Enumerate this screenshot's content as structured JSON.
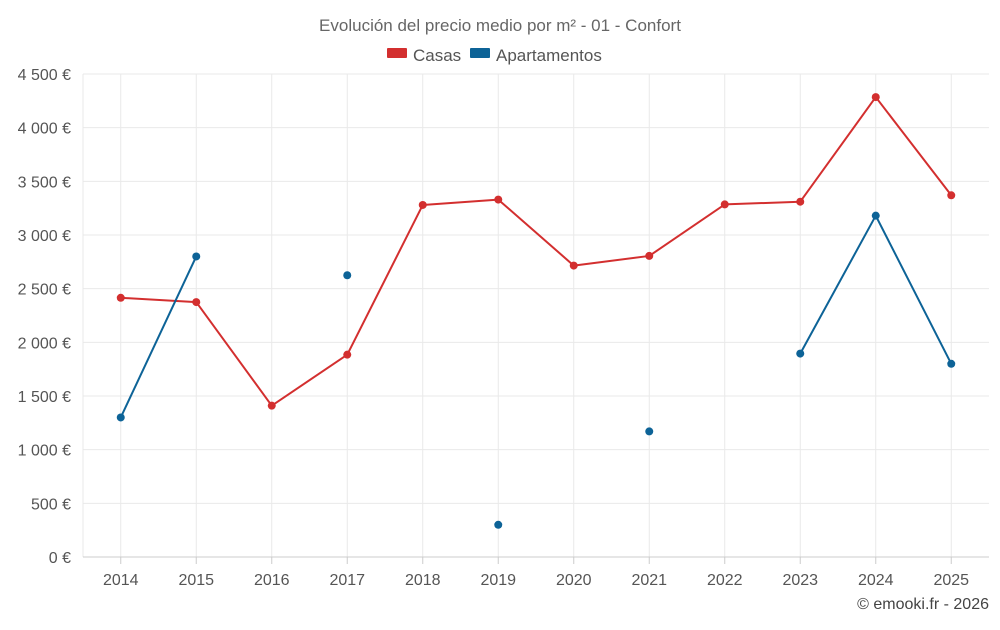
{
  "chart_data": {
    "type": "line",
    "title": "Evolución del precio medio por m² - 01 - Confort",
    "xlabel": "",
    "ylabel": "",
    "categories": [
      "2014",
      "2015",
      "2016",
      "2017",
      "2018",
      "2019",
      "2020",
      "2021",
      "2022",
      "2023",
      "2024",
      "2025"
    ],
    "ylim": [
      0,
      4500
    ],
    "y_ticks": [
      0,
      500,
      1000,
      1500,
      2000,
      2500,
      3000,
      3500,
      4000,
      4500
    ],
    "y_tick_labels": [
      "0 €",
      "500 €",
      "1 000 €",
      "1 500 €",
      "2 000 €",
      "2 500 €",
      "3 000 €",
      "3 500 €",
      "4 000 €",
      "4 500 €"
    ],
    "grid": true,
    "legend_position": "top-center",
    "series": [
      {
        "name": "Casas",
        "color": "#d32f2f",
        "values": [
          2415,
          2375,
          1410,
          1885,
          3280,
          3330,
          2715,
          2805,
          3285,
          3310,
          4285,
          3370
        ]
      },
      {
        "name": "Apartamentos",
        "color": "#0d6397",
        "values": [
          1300,
          2800,
          null,
          2625,
          null,
          300,
          null,
          1170,
          null,
          1895,
          3180,
          1800
        ]
      }
    ]
  },
  "credit": "© emooki.fr - 2026"
}
